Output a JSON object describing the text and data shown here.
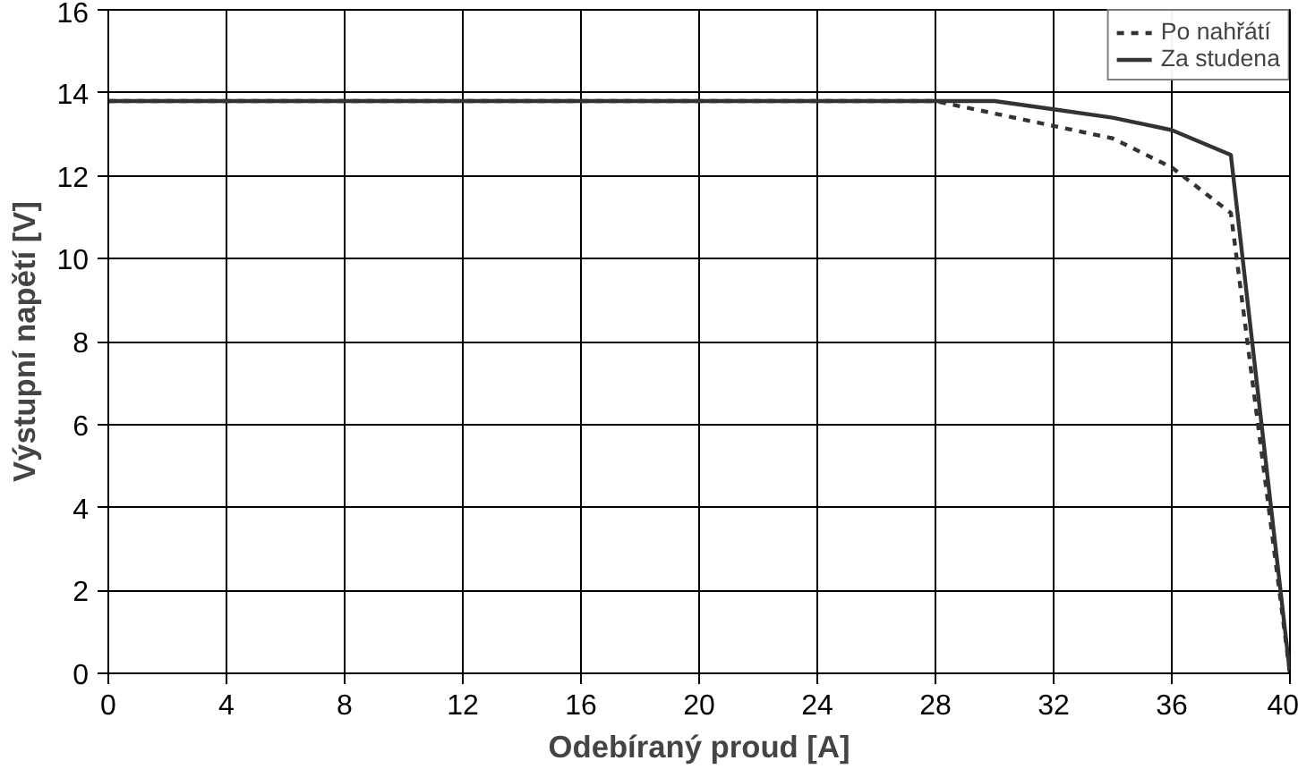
{
  "chart_data": {
    "type": "line",
    "xlabel": "Odebíraný proud [A]",
    "ylabel": "Výstupní napětí [V]",
    "xlim": [
      0,
      40
    ],
    "xticks": [
      0,
      4,
      8,
      12,
      16,
      20,
      24,
      28,
      32,
      36,
      40
    ],
    "ylim": [
      0,
      16
    ],
    "yticks": [
      0,
      2,
      4,
      6,
      8,
      10,
      12,
      14,
      16
    ],
    "grid": true,
    "legend": "top right",
    "series": [
      {
        "name": "Po nahřátí",
        "color": "#333333",
        "line_style": "dashed",
        "x": [
          0,
          28,
          30,
          32,
          34,
          36,
          38,
          40
        ],
        "values": [
          13.8,
          13.8,
          13.5,
          13.2,
          12.9,
          12.2,
          11.1,
          0
        ]
      },
      {
        "name": "Za studena",
        "color": "#333333",
        "line_style": "solid",
        "x": [
          0,
          28,
          30,
          32,
          34,
          36,
          38,
          40
        ],
        "values": [
          13.8,
          13.8,
          13.8,
          13.6,
          13.4,
          13.1,
          12.5,
          0
        ]
      }
    ]
  }
}
